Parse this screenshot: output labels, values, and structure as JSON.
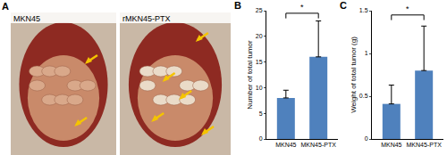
{
  "photo_panel": {
    "label": "A",
    "captions": [
      "MKN45",
      "rMKN45-PTX"
    ]
  },
  "chart_data": [
    {
      "type": "bar",
      "panel_label": "B",
      "categories": [
        "MKN45",
        "MKN45-PTX"
      ],
      "values": [
        8,
        16
      ],
      "errors": [
        1.5,
        7
      ],
      "color": "#4f81bd",
      "ylabel": "Number of total tumor",
      "ylim": [
        0,
        25
      ],
      "yticks": [
        0,
        5,
        10,
        15,
        20,
        25
      ],
      "significance": {
        "text": "*",
        "between": [
          0,
          1
        ],
        "y": 24.5
      }
    },
    {
      "type": "bar",
      "panel_label": "C",
      "categories": [
        "MKN45",
        "MKN45-PTX"
      ],
      "values": [
        0.41,
        0.8
      ],
      "errors": [
        0.22,
        0.52
      ],
      "color": "#4f81bd",
      "ylabel": "Weight of total tumor (g)",
      "ylim": [
        0,
        1.5
      ],
      "yticks": [
        0,
        0.5,
        1,
        1.5
      ],
      "significance": {
        "text": "*",
        "between": [
          0,
          1
        ],
        "y": 1.45
      }
    }
  ]
}
